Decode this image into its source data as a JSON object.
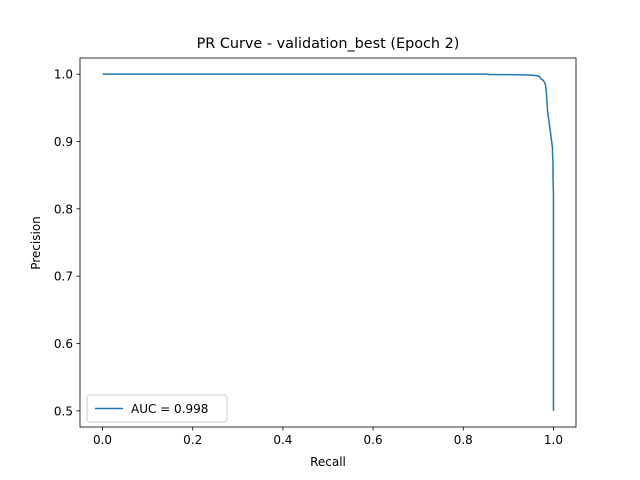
{
  "chart_data": {
    "type": "line",
    "title": "PR Curve - validation_best (Epoch 2)",
    "xlabel": "Recall",
    "ylabel": "Precision",
    "xlim": [
      -0.05,
      1.05
    ],
    "ylim": [
      0.476,
      1.024
    ],
    "x_ticks": [
      0.0,
      0.2,
      0.4,
      0.6,
      0.8,
      1.0
    ],
    "x_tick_labels": [
      "0.0",
      "0.2",
      "0.4",
      "0.6",
      "0.8",
      "1.0"
    ],
    "y_ticks": [
      0.5,
      0.6,
      0.7,
      0.8,
      0.9,
      1.0
    ],
    "y_tick_labels": [
      "0.5",
      "0.6",
      "0.7",
      "0.8",
      "0.9",
      "1.0"
    ],
    "grid": false,
    "legend_position": "lower-left",
    "series": [
      {
        "name": "AUC = 0.998",
        "color": "#1f77b4",
        "x": [
          0.0,
          0.2,
          0.4,
          0.6,
          0.8,
          0.855,
          0.856,
          0.9,
          0.92,
          0.94,
          0.95,
          0.96,
          0.965,
          0.97,
          0.972,
          0.975,
          0.978,
          0.98,
          0.982,
          0.984,
          0.985,
          0.986,
          0.987,
          0.988,
          0.989,
          0.99,
          0.991,
          0.992,
          0.993,
          0.994,
          0.995,
          0.996,
          0.997,
          0.998,
          0.998,
          0.999,
          0.999,
          1.0,
          1.0,
          1.0
        ],
        "y": [
          1.0,
          1.0,
          1.0,
          1.0,
          1.0,
          1.0,
          0.9995,
          0.9993,
          0.9992,
          0.9989,
          0.9985,
          0.998,
          0.9975,
          0.996,
          0.993,
          0.992,
          0.99,
          0.988,
          0.985,
          0.975,
          0.965,
          0.955,
          0.945,
          0.94,
          0.935,
          0.93,
          0.925,
          0.92,
          0.915,
          0.91,
          0.905,
          0.9,
          0.895,
          0.89,
          0.88,
          0.87,
          0.85,
          0.82,
          0.7,
          0.5
        ]
      }
    ]
  }
}
